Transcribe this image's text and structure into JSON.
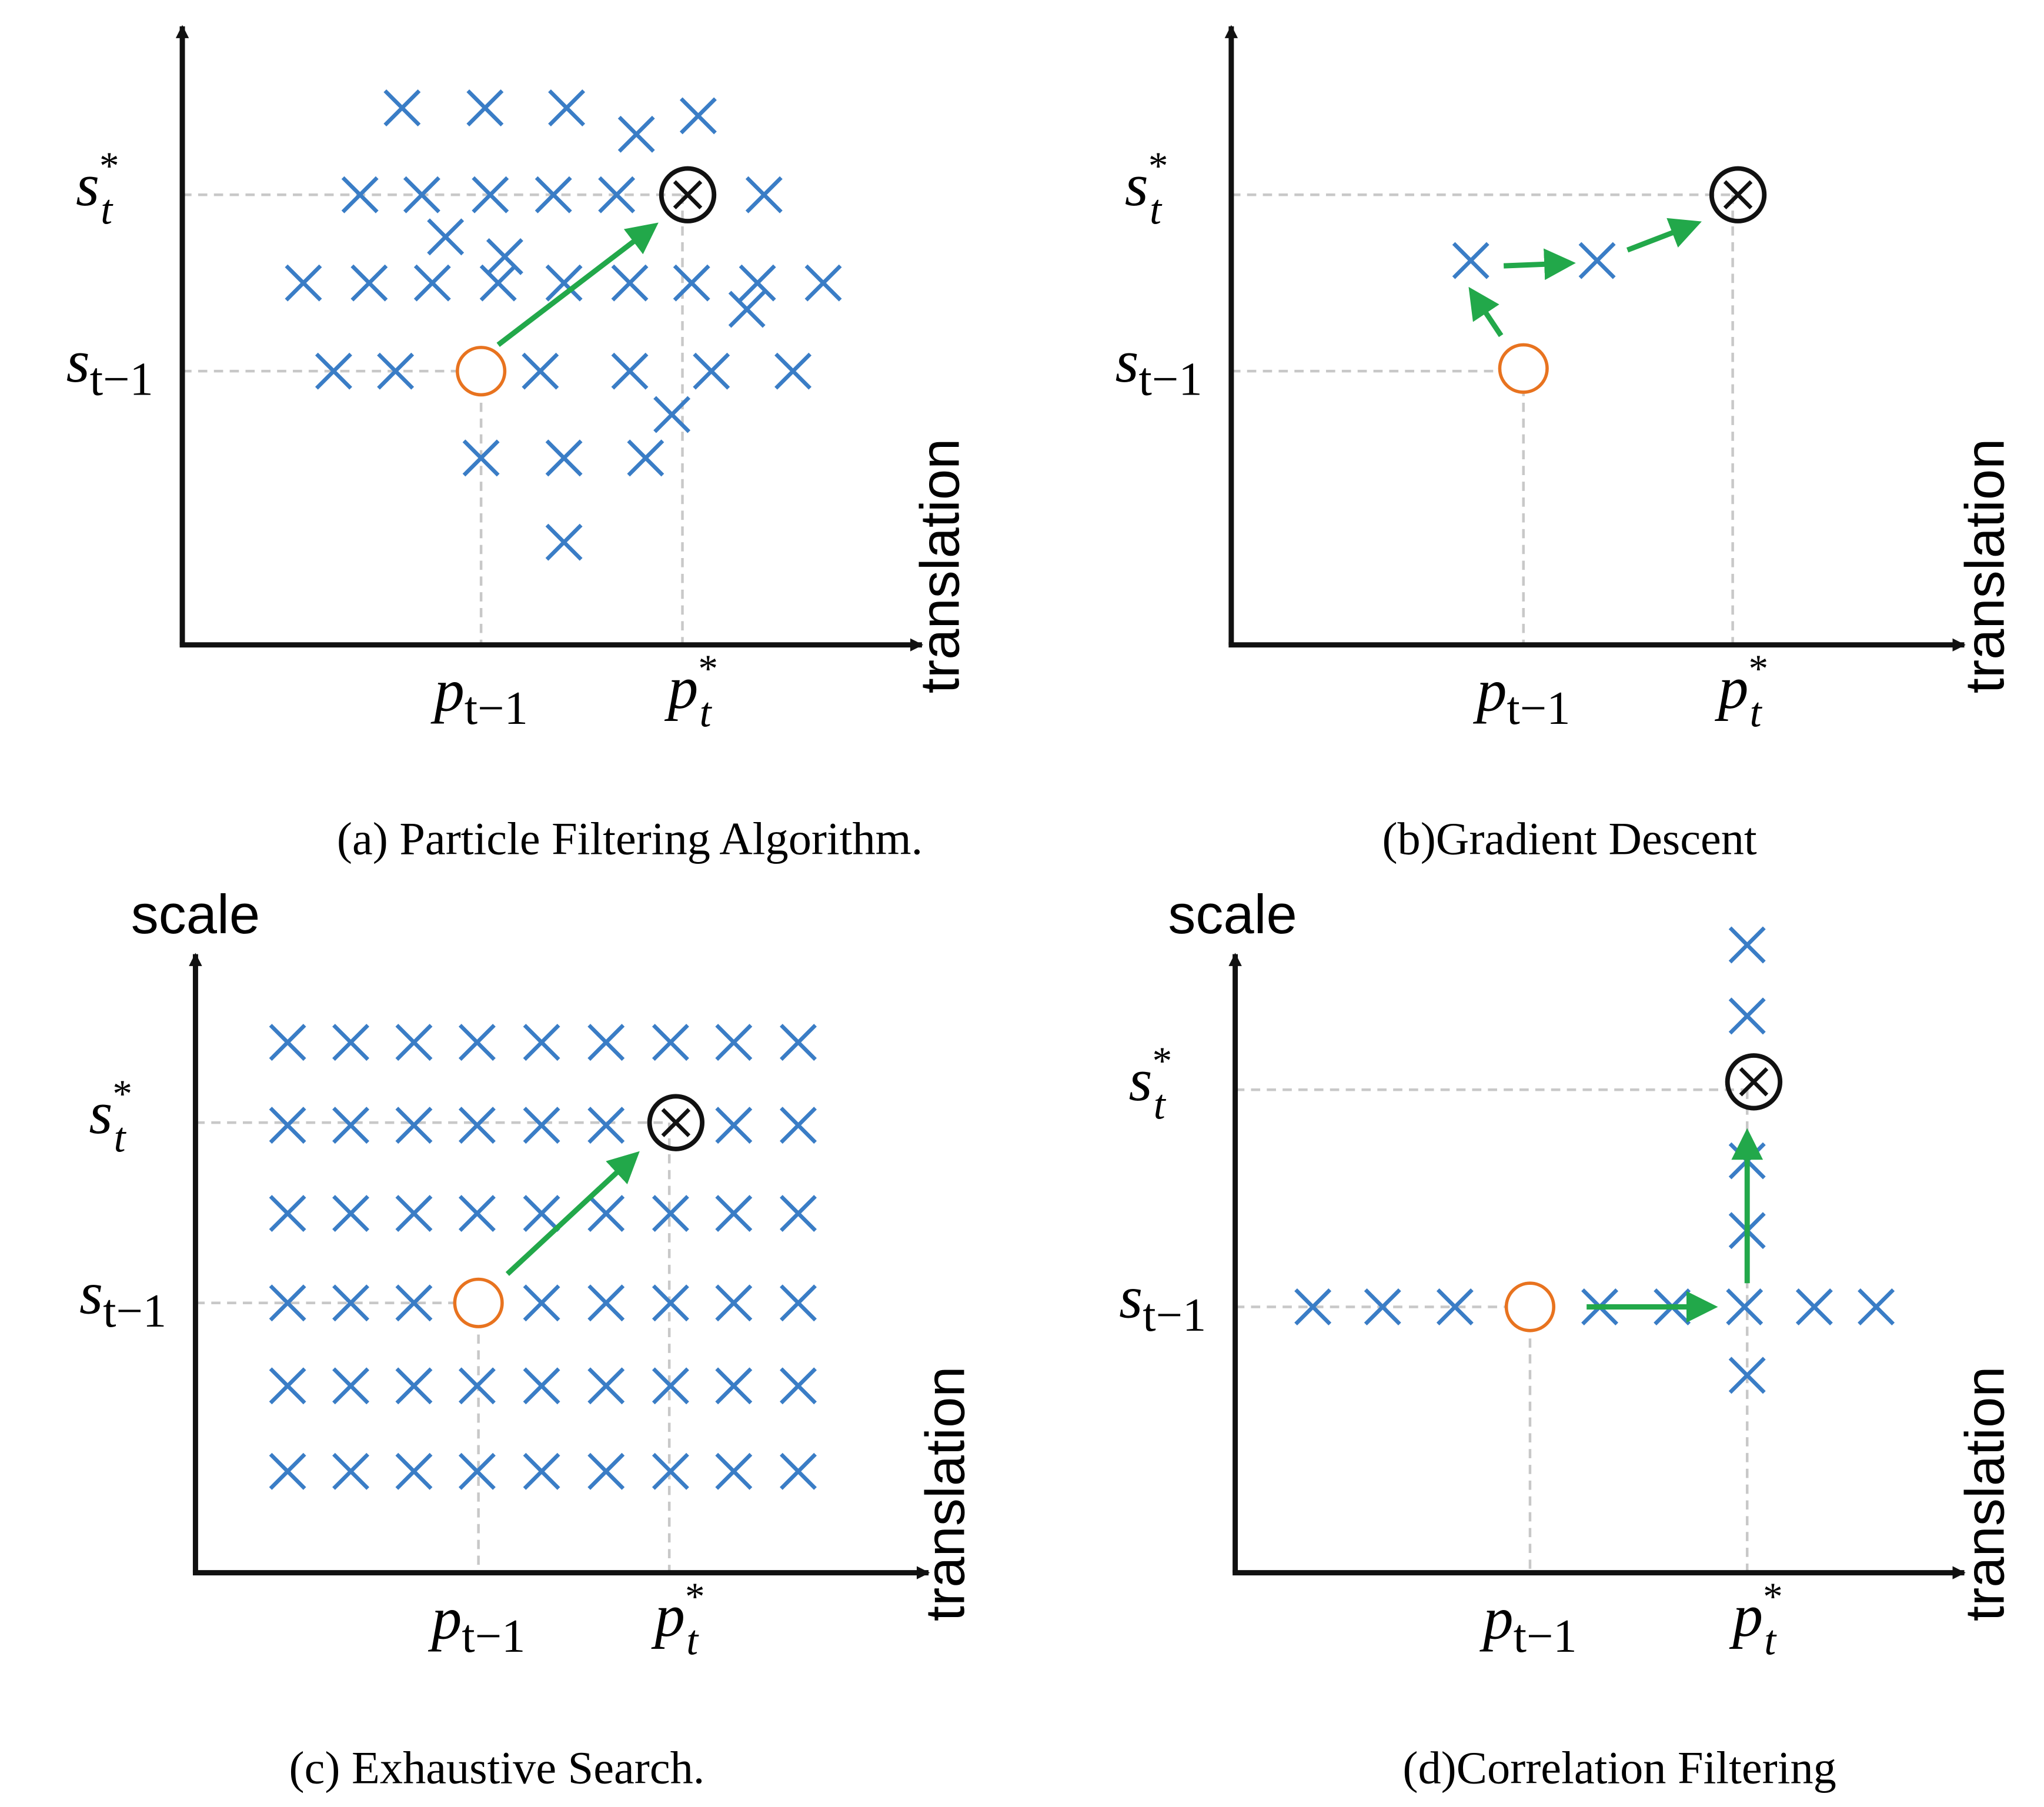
{
  "panels": [
    {
      "caption": "(a) Particle Filtering Algorithm.",
      "x_axis_label": "translation",
      "labels": {
        "s_star": {
          "base": "s",
          "sub": "t",
          "sup": "*"
        },
        "s_prev": {
          "base": "s",
          "sub": "t−1"
        },
        "p_prev": {
          "base": "p",
          "sub": "t−1"
        },
        "p_star": {
          "base": "p",
          "sub": "t",
          "sup": "*"
        }
      }
    },
    {
      "caption": "(b)Gradient Descent",
      "x_axis_label": "translation",
      "labels": {
        "s_star": {
          "base": "s",
          "sub": "t",
          "sup": "*"
        },
        "s_prev": {
          "base": "s",
          "sub": "t−1"
        },
        "p_prev": {
          "base": "p",
          "sub": "t−1"
        },
        "p_star": {
          "base": "p",
          "sub": "t",
          "sup": "*"
        }
      }
    },
    {
      "caption": "(c) Exhaustive Search.",
      "y_axis_label": "scale",
      "x_axis_label": "translation",
      "labels": {
        "s_star": {
          "base": "s",
          "sub": "t",
          "sup": "*"
        },
        "s_prev": {
          "base": "s",
          "sub": "t−1"
        },
        "p_prev": {
          "base": "p",
          "sub": "t−1"
        },
        "p_star": {
          "base": "p",
          "sub": "t",
          "sup": "*"
        }
      }
    },
    {
      "caption": "(d)Correlation Filtering",
      "y_axis_label": "scale",
      "x_axis_label": "translation",
      "labels": {
        "s_star": {
          "base": "s",
          "sub": "t",
          "sup": "*"
        },
        "s_prev": {
          "base": "s",
          "sub": "t−1"
        },
        "p_prev": {
          "base": "p",
          "sub": "t−1"
        },
        "p_star": {
          "base": "p",
          "sub": "t",
          "sup": "*"
        }
      }
    }
  ]
}
